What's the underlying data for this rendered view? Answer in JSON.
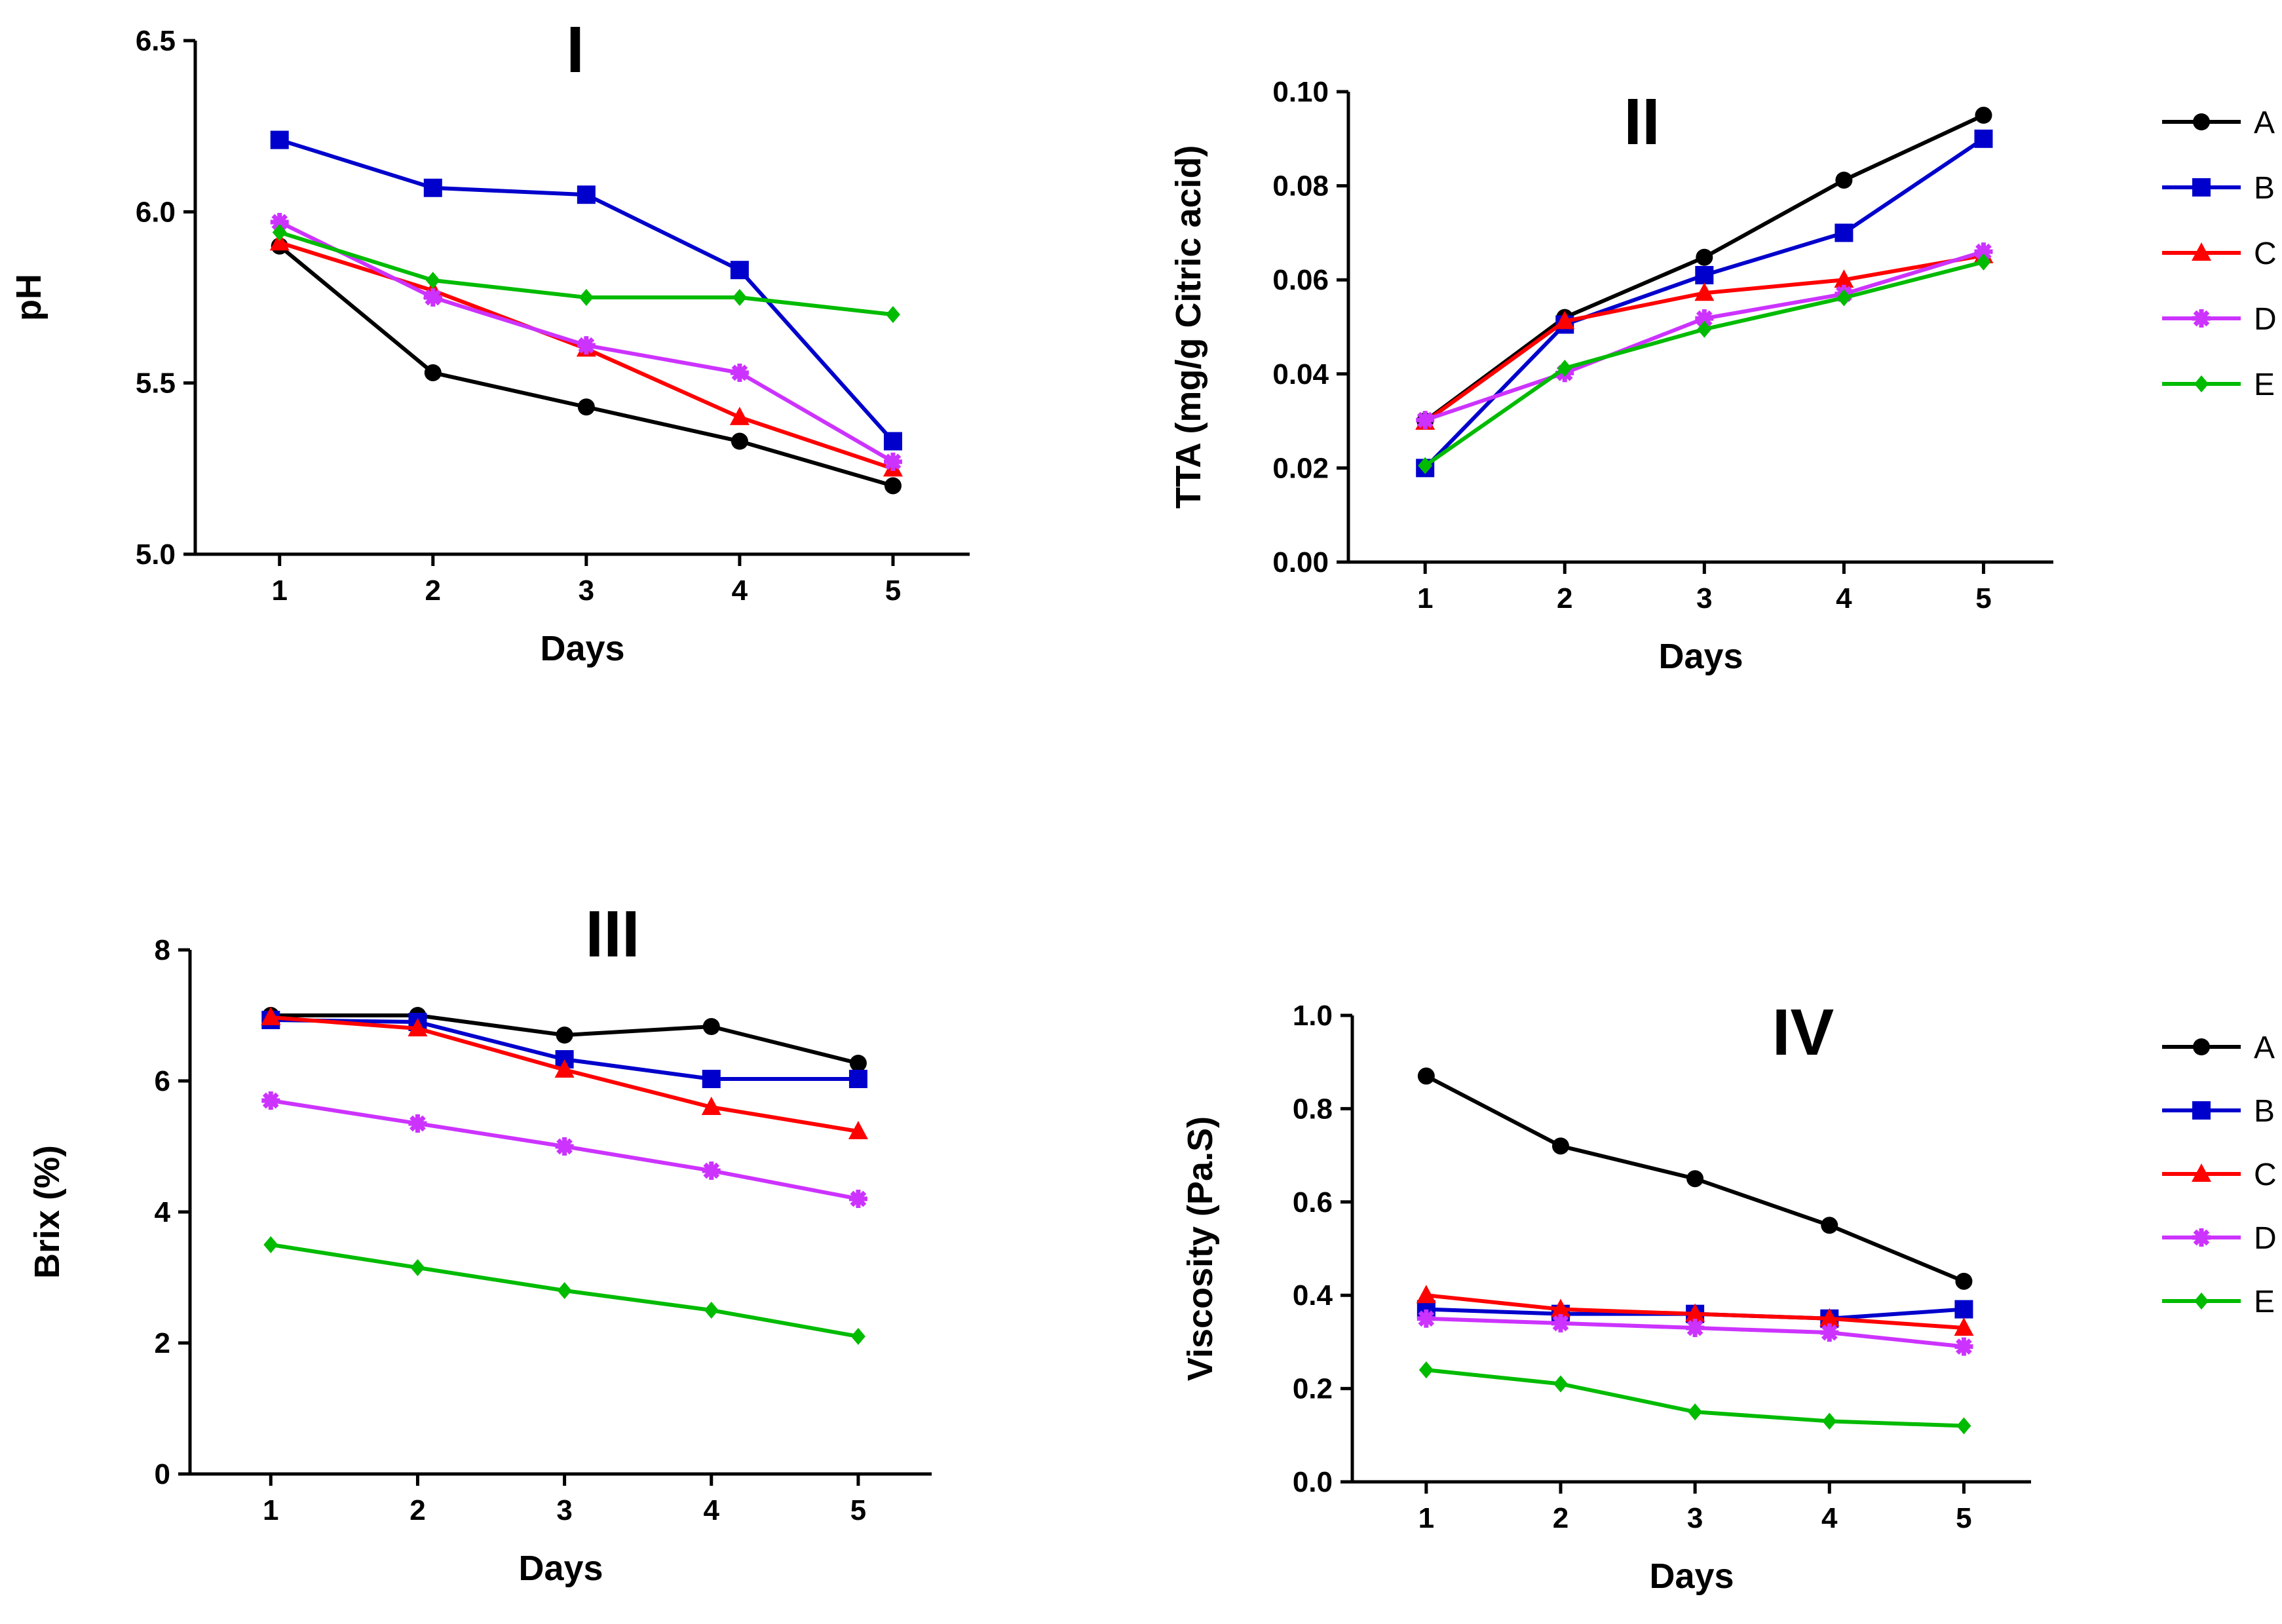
{
  "colors": {
    "A": "#000000",
    "B": "#0000cc",
    "C": "#ff0000",
    "D": "#cc33ff",
    "E": "#00bb00"
  },
  "markers": {
    "A": "circle",
    "B": "square",
    "C": "triangle",
    "D": "asterisk",
    "E": "diamond"
  },
  "chart_data": [
    {
      "type": "line",
      "panel_label": "I",
      "title": "I",
      "xlabel": "Days",
      "ylabel": "pH",
      "x": [
        1,
        2,
        3,
        4,
        5
      ],
      "x_tick_labels": [
        "1",
        "2",
        "3",
        "4",
        "5"
      ],
      "ylim": [
        5.0,
        6.5
      ],
      "y_ticks": [
        5.0,
        5.5,
        6.0,
        6.5
      ],
      "y_tick_labels": [
        "5.0",
        "5.5",
        "6.0",
        "6.5"
      ],
      "legend": false,
      "series": [
        {
          "name": "A",
          "values": [
            5.9,
            5.53,
            5.43,
            5.33,
            5.2
          ]
        },
        {
          "name": "B",
          "values": [
            6.21,
            6.07,
            6.05,
            5.83,
            5.33
          ]
        },
        {
          "name": "C",
          "values": [
            5.91,
            5.77,
            5.6,
            5.4,
            5.25
          ]
        },
        {
          "name": "D",
          "values": [
            5.97,
            5.75,
            5.61,
            5.53,
            5.27
          ]
        },
        {
          "name": "E",
          "values": [
            5.94,
            5.8,
            5.75,
            5.75,
            5.7
          ]
        }
      ]
    },
    {
      "type": "line",
      "panel_label": "II",
      "title": "II",
      "xlabel": "Days",
      "ylabel": "TTA (mg/g Citric acid)",
      "x": [
        1,
        2,
        3,
        4,
        5
      ],
      "x_tick_labels": [
        "1",
        "2",
        "3",
        "4",
        "5"
      ],
      "ylim": [
        0.0,
        0.1
      ],
      "y_ticks": [
        0.0,
        0.02,
        0.04,
        0.06,
        0.08,
        0.1
      ],
      "y_tick_labels": [
        "0.00",
        "0.02",
        "0.04",
        "0.06",
        "0.08",
        "0.10"
      ],
      "legend": true,
      "legend_position": "right",
      "series": [
        {
          "name": "A",
          "values": [
            0.03,
            0.052,
            0.0648,
            0.0812,
            0.095
          ]
        },
        {
          "name": "B",
          "values": [
            0.02,
            0.0505,
            0.061,
            0.07,
            0.09
          ]
        },
        {
          "name": "C",
          "values": [
            0.0298,
            0.0512,
            0.0572,
            0.06,
            0.0652
          ]
        },
        {
          "name": "D",
          "values": [
            0.0302,
            0.0402,
            0.0518,
            0.057,
            0.066
          ]
        },
        {
          "name": "E",
          "values": [
            0.0205,
            0.0412,
            0.0495,
            0.0562,
            0.0638
          ]
        }
      ]
    },
    {
      "type": "line",
      "panel_label": "III",
      "title": "III",
      "xlabel": "Days",
      "ylabel": "Brix (%)",
      "x": [
        1,
        2,
        3,
        4,
        5
      ],
      "x_tick_labels": [
        "1",
        "2",
        "3",
        "4",
        "5"
      ],
      "ylim": [
        0,
        8
      ],
      "y_ticks": [
        0,
        2,
        4,
        6,
        8
      ],
      "y_tick_labels": [
        "0",
        "2",
        "4",
        "6",
        "8"
      ],
      "legend": false,
      "series": [
        {
          "name": "A",
          "values": [
            7.0,
            7.0,
            6.7,
            6.83,
            6.27
          ]
        },
        {
          "name": "B",
          "values": [
            6.93,
            6.9,
            6.33,
            6.03,
            6.03
          ]
        },
        {
          "name": "C",
          "values": [
            6.97,
            6.8,
            6.17,
            5.6,
            5.23
          ]
        },
        {
          "name": "D",
          "values": [
            5.7,
            5.35,
            5.0,
            4.63,
            4.2
          ]
        },
        {
          "name": "E",
          "values": [
            3.5,
            3.15,
            2.8,
            2.5,
            2.1
          ]
        }
      ]
    },
    {
      "type": "line",
      "panel_label": "IV",
      "title": "IV",
      "xlabel": "Days",
      "ylabel": "Viscosity (Pa.S)",
      "x": [
        1,
        2,
        3,
        4,
        5
      ],
      "x_tick_labels": [
        "1",
        "2",
        "3",
        "4",
        "5"
      ],
      "ylim": [
        0.0,
        1.0
      ],
      "y_ticks": [
        0.0,
        0.2,
        0.4,
        0.6,
        0.8,
        1.0
      ],
      "y_tick_labels": [
        "0.0",
        "0.2",
        "0.4",
        "0.6",
        "0.8",
        "1.0"
      ],
      "legend": true,
      "legend_position": "right",
      "series": [
        {
          "name": "A",
          "values": [
            0.87,
            0.72,
            0.65,
            0.55,
            0.43
          ]
        },
        {
          "name": "B",
          "values": [
            0.37,
            0.36,
            0.36,
            0.35,
            0.37
          ]
        },
        {
          "name": "C",
          "values": [
            0.4,
            0.37,
            0.36,
            0.35,
            0.33
          ]
        },
        {
          "name": "D",
          "values": [
            0.35,
            0.34,
            0.33,
            0.32,
            0.29
          ]
        },
        {
          "name": "E",
          "values": [
            0.24,
            0.21,
            0.15,
            0.13,
            0.12
          ]
        }
      ]
    }
  ]
}
